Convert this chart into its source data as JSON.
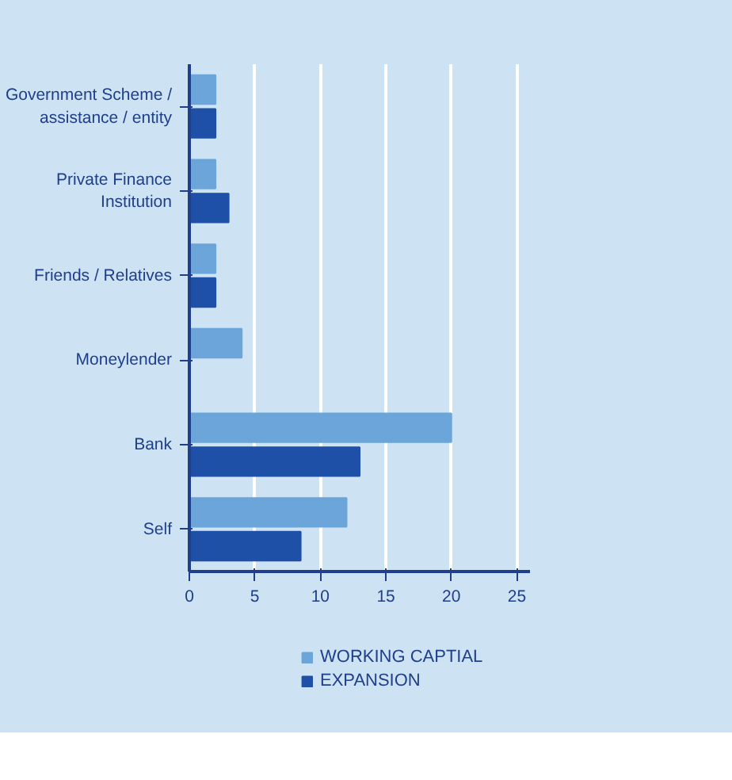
{
  "chart_data": {
    "type": "bar",
    "orientation": "horizontal",
    "categories": [
      "Government Scheme / assistance / entity",
      "Private Finance Institution",
      "Friends / Relatives",
      "Moneylender",
      "Bank",
      "Self"
    ],
    "series": [
      {
        "name": "WORKING CAPTIAL",
        "color": "#6ba5d9",
        "values": [
          2,
          2,
          2,
          4,
          20,
          12
        ]
      },
      {
        "name": "EXPANSION",
        "color": "#1f50a8",
        "values": [
          2,
          3,
          2,
          null,
          13,
          8.5
        ]
      }
    ],
    "xlim": [
      0,
      26
    ],
    "xticks": [
      0,
      5,
      10,
      15,
      20,
      25
    ],
    "grid": "x",
    "legend": "bottom"
  }
}
